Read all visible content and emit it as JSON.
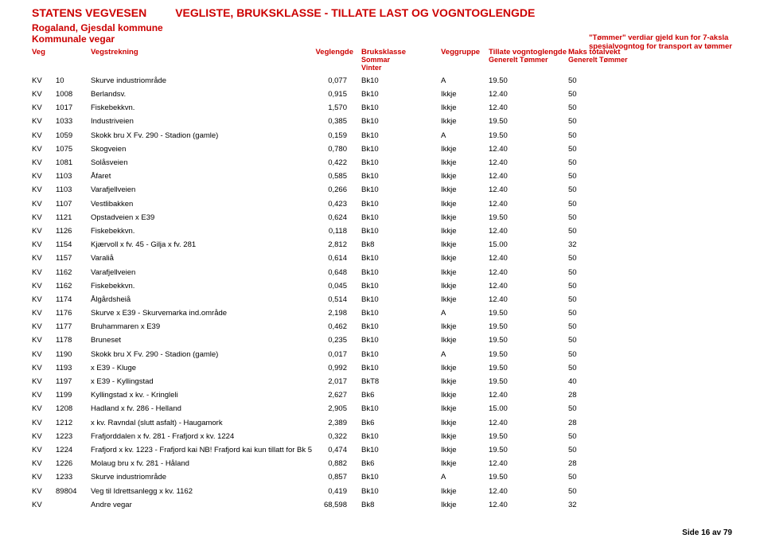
{
  "header": {
    "agency": "STATENS VEGVESEN",
    "title": "VEGLISTE, BRUKSKLASSE - TILLATE LAST OG VOGNTOGLENGDE",
    "region": "Rogaland, Gjesdal kommune",
    "sub": "Kommunale vegar",
    "note_l1": "\"Tømmer\" verdiar gjeld kun for 7-aksla",
    "note_l2": "spesialvogntog for transport av tømmer"
  },
  "columns": {
    "veg": "Veg",
    "strek": "Vegstrekning",
    "len": "Veglengde",
    "bk": "Bruksklasse",
    "bk_sub": "Sommar   Vinter",
    "grp": "Veggruppe",
    "til": "Tillate vogntoglengde",
    "til_sub": "Generelt       Tømmer",
    "maks": "Maks totalvekt",
    "maks_sub": "Generelt Tømmer"
  },
  "rows": [
    {
      "veg": "KV",
      "id": "10",
      "strek": "Skurve industriområde",
      "len": "0,077",
      "bk": "Bk10",
      "grp": "A",
      "til": "19.50",
      "maks": "50"
    },
    {
      "veg": "KV",
      "id": "1008",
      "strek": "Berlandsv.",
      "len": "0,915",
      "bk": "Bk10",
      "grp": "Ikkje",
      "til": "12.40",
      "maks": "50"
    },
    {
      "veg": "KV",
      "id": "1017",
      "strek": "Fiskebekkvn.",
      "len": "1,570",
      "bk": "Bk10",
      "grp": "Ikkje",
      "til": "12.40",
      "maks": "50"
    },
    {
      "veg": "KV",
      "id": "1033",
      "strek": "Industriveien",
      "len": "0,385",
      "bk": "Bk10",
      "grp": "Ikkje",
      "til": "19.50",
      "maks": "50"
    },
    {
      "veg": "KV",
      "id": "1059",
      "strek": "Skokk bru X Fv. 290 - Stadion (gamle)",
      "len": "0,159",
      "bk": "Bk10",
      "grp": "A",
      "til": "19.50",
      "maks": "50"
    },
    {
      "veg": "KV",
      "id": "1075",
      "strek": "Skogveien",
      "len": "0,780",
      "bk": "Bk10",
      "grp": "Ikkje",
      "til": "12.40",
      "maks": "50"
    },
    {
      "veg": "KV",
      "id": "1081",
      "strek": "Solåsveien",
      "len": "0,422",
      "bk": "Bk10",
      "grp": "Ikkje",
      "til": "12.40",
      "maks": "50"
    },
    {
      "veg": "KV",
      "id": "1103",
      "strek": "Åfaret",
      "len": "0,585",
      "bk": "Bk10",
      "grp": "Ikkje",
      "til": "12.40",
      "maks": "50"
    },
    {
      "veg": "KV",
      "id": "1103",
      "strek": "Varafjellveien",
      "len": "0,266",
      "bk": "Bk10",
      "grp": "Ikkje",
      "til": "12.40",
      "maks": "50"
    },
    {
      "veg": "KV",
      "id": "1107",
      "strek": "Vestlibakken",
      "len": "0,423",
      "bk": "Bk10",
      "grp": "Ikkje",
      "til": "12.40",
      "maks": "50"
    },
    {
      "veg": "KV",
      "id": "1121",
      "strek": "Opstadveien x E39",
      "len": "0,624",
      "bk": "Bk10",
      "grp": "Ikkje",
      "til": "19.50",
      "maks": "50"
    },
    {
      "veg": "KV",
      "id": "1126",
      "strek": "Fiskebekkvn.",
      "len": "0,118",
      "bk": "Bk10",
      "grp": "Ikkje",
      "til": "12.40",
      "maks": "50"
    },
    {
      "veg": "KV",
      "id": "1154",
      "strek": "Kjærvoll x fv. 45 - Gilja x fv. 281",
      "len": "2,812",
      "bk": "Bk8",
      "grp": "Ikkje",
      "til": "15.00",
      "maks": "32"
    },
    {
      "veg": "KV",
      "id": "1157",
      "strek": "Varaliå",
      "len": "0,614",
      "bk": "Bk10",
      "grp": "Ikkje",
      "til": "12.40",
      "maks": "50"
    },
    {
      "veg": "KV",
      "id": "1162",
      "strek": "Varafjellveien",
      "len": "0,648",
      "bk": "Bk10",
      "grp": "Ikkje",
      "til": "12.40",
      "maks": "50"
    },
    {
      "veg": "KV",
      "id": "1162",
      "strek": "Fiskebekkvn.",
      "len": "0,045",
      "bk": "Bk10",
      "grp": "Ikkje",
      "til": "12.40",
      "maks": "50"
    },
    {
      "veg": "KV",
      "id": "1174",
      "strek": "Ålgårdsheiå",
      "len": "0,514",
      "bk": "Bk10",
      "grp": "Ikkje",
      "til": "12.40",
      "maks": "50"
    },
    {
      "veg": "KV",
      "id": "1176",
      "strek": "Skurve x E39 - Skurvemarka ind.område",
      "len": "2,198",
      "bk": "Bk10",
      "grp": "A",
      "til": "19.50",
      "maks": "50"
    },
    {
      "veg": "KV",
      "id": "1177",
      "strek": "Bruhammaren x E39",
      "len": "0,462",
      "bk": "Bk10",
      "grp": "Ikkje",
      "til": "19.50",
      "maks": "50"
    },
    {
      "veg": "KV",
      "id": "1178",
      "strek": "Bruneset",
      "len": "0,235",
      "bk": "Bk10",
      "grp": "Ikkje",
      "til": "19.50",
      "maks": "50"
    },
    {
      "veg": "KV",
      "id": "1190",
      "strek": "Skokk bru X Fv. 290 - Stadion (gamle)",
      "len": "0,017",
      "bk": "Bk10",
      "grp": "A",
      "til": "19.50",
      "maks": "50"
    },
    {
      "veg": "KV",
      "id": "1193",
      "strek": "x E39 - Kluge",
      "len": "0,992",
      "bk": "Bk10",
      "grp": "Ikkje",
      "til": "19.50",
      "maks": "50"
    },
    {
      "veg": "KV",
      "id": "1197",
      "strek": "x E39 - Kyllingstad",
      "len": "2,017",
      "bk": "BkT8",
      "grp": "Ikkje",
      "til": "19.50",
      "maks": "40"
    },
    {
      "veg": "KV",
      "id": "1199",
      "strek": "Kyllingstad x kv. - Kringleli",
      "len": "2,627",
      "bk": "Bk6",
      "grp": "Ikkje",
      "til": "12.40",
      "maks": "28"
    },
    {
      "veg": "KV",
      "id": "1208",
      "strek": "Hadland x fv. 286 - Helland",
      "len": "2,905",
      "bk": "Bk10",
      "grp": "Ikkje",
      "til": "15.00",
      "maks": "50"
    },
    {
      "veg": "KV",
      "id": "1212",
      "strek": "x kv. Ravndal (slutt asfalt) - Haugamork",
      "len": "2,389",
      "bk": "Bk6",
      "grp": "Ikkje",
      "til": "12.40",
      "maks": "28"
    },
    {
      "veg": "KV",
      "id": "1223",
      "strek": "Frafjorddalen x fv. 281 - Frafjord x kv. 1224",
      "len": "0,322",
      "bk": "Bk10",
      "grp": "Ikkje",
      "til": "19.50",
      "maks": "50"
    },
    {
      "veg": "KV",
      "id": "1224",
      "strek": "Frafjord x kv. 1223 - Frafjord kai  NB! Frafjord kai kun tillatt for Bk 5",
      "len": "0,474",
      "bk": "Bk10",
      "grp": "Ikkje",
      "til": "19.50",
      "maks": "50"
    },
    {
      "veg": "KV",
      "id": "1226",
      "strek": "Molaug bru x fv. 281 - Håland",
      "len": "0,882",
      "bk": "Bk6",
      "grp": "Ikkje",
      "til": "12.40",
      "maks": "28"
    },
    {
      "veg": "KV",
      "id": "1233",
      "strek": "Skurve industriområde",
      "len": "0,857",
      "bk": "Bk10",
      "grp": "A",
      "til": "19.50",
      "maks": "50"
    },
    {
      "veg": "KV",
      "id": "89804",
      "strek": "Veg til Idrettsanlegg x kv. 1162",
      "len": "0,419",
      "bk": "Bk10",
      "grp": "Ikkje",
      "til": "12.40",
      "maks": "50"
    },
    {
      "veg": "KV",
      "id": "",
      "strek": "Andre vegar",
      "len": "68,598",
      "bk": "Bk8",
      "grp": "Ikkje",
      "til": "12.40",
      "maks": "32"
    }
  ],
  "footer": "Side 16 av 79",
  "style": {
    "accent": "#cc0000",
    "text": "#000000",
    "bg": "#ffffff",
    "font_main": 10,
    "font_hdr": 14,
    "font_sub": 12,
    "font_row": 9.5
  }
}
